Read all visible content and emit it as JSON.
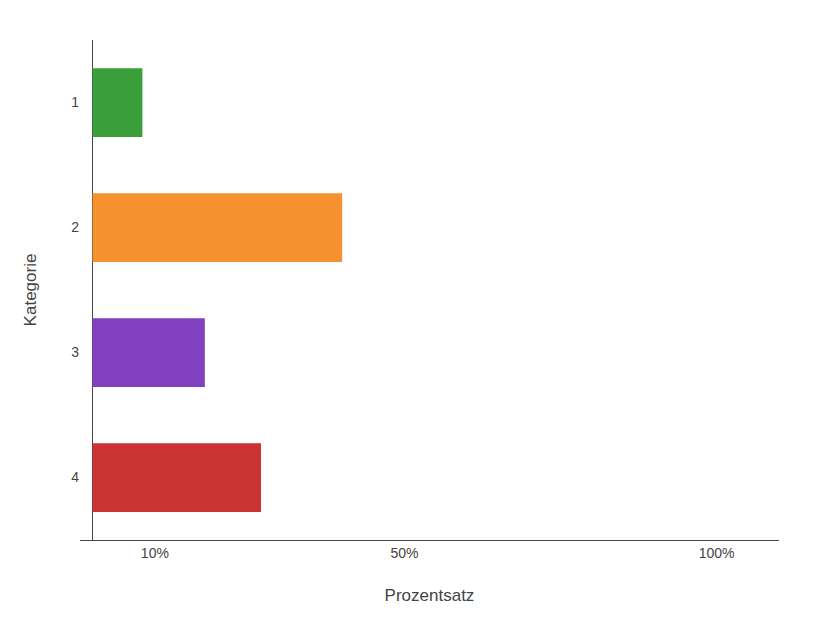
{
  "chart_data": {
    "type": "bar",
    "orientation": "horizontal",
    "categories": [
      "1",
      "2",
      "3",
      "4"
    ],
    "values": [
      8,
      40,
      18,
      27
    ],
    "colors": [
      "#3a9e3a",
      "#f5922f",
      "#8040c0",
      "#cc3333"
    ],
    "xlabel": "Prozentsatz",
    "ylabel": "Kategorie",
    "xlim": [
      -2,
      110
    ],
    "xticks": [
      {
        "value": 10,
        "label": "10%"
      },
      {
        "value": 50,
        "label": "50%"
      },
      {
        "value": 100,
        "label": "100%"
      }
    ],
    "grid": false
  }
}
